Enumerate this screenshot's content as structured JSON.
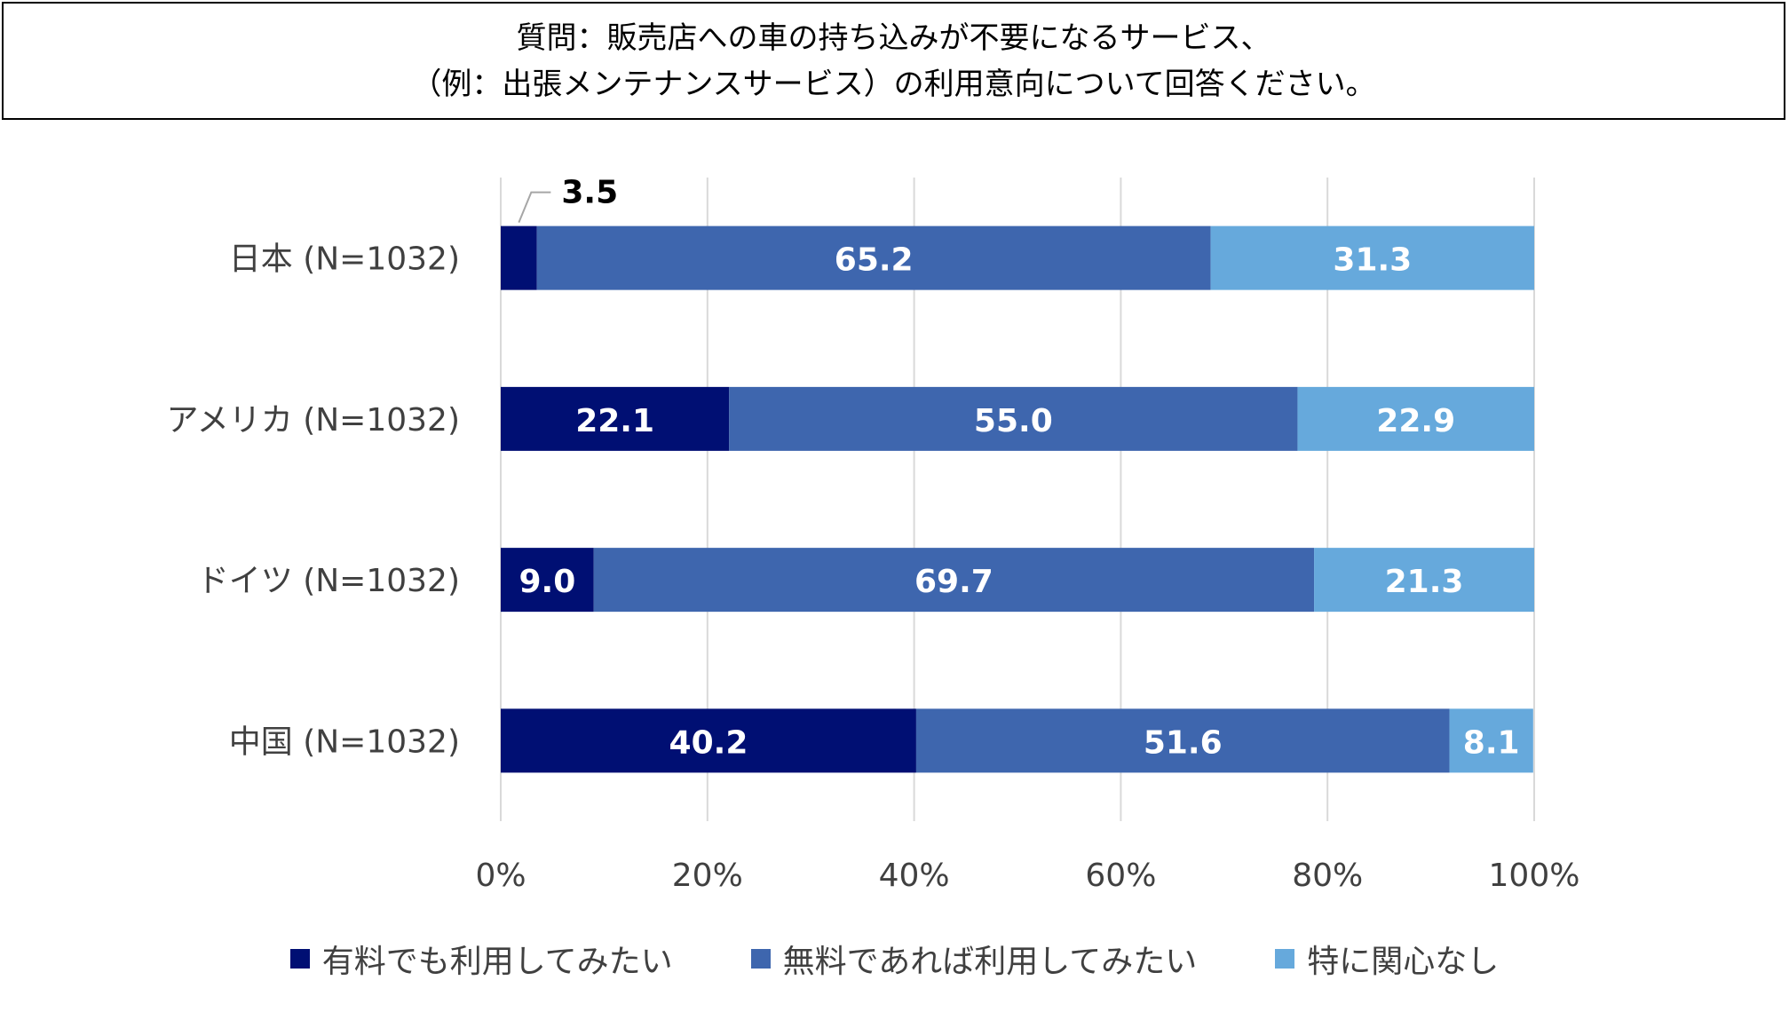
{
  "question": {
    "line1": "質問：販売店への車の持ち込みが不要になるサービス、",
    "line2": "（例：出張メンテナンスサービス）の利用意向について回答ください。"
  },
  "colors": {
    "paid": "#000F73",
    "free": "#3E66AE",
    "none": "#66A9DC",
    "grid": "#D9D9D9",
    "text": "#404040"
  },
  "chart_data": {
    "type": "bar",
    "orientation": "horizontal",
    "stacked": "100%",
    "categories": [
      "日本 (N=1032)",
      "アメリカ (N=1032)",
      "ドイツ (N=1032)",
      "中国 (N=1032)"
    ],
    "series": [
      {
        "name": "有料でも利用してみたい",
        "values": [
          3.5,
          22.1,
          9.0,
          40.2
        ],
        "labels": [
          "3.5",
          "22.1",
          "9.0",
          "40.2"
        ]
      },
      {
        "name": "無料であれば利用してみたい",
        "values": [
          65.2,
          55.0,
          69.7,
          51.6
        ],
        "labels": [
          "65.2",
          "55.0",
          "69.7",
          "51.6"
        ]
      },
      {
        "name": "特に関心なし",
        "values": [
          31.3,
          22.9,
          21.3,
          8.1
        ],
        "labels": [
          "31.3",
          "22.9",
          "21.3",
          "8.1"
        ]
      }
    ],
    "xlim": [
      0,
      100
    ],
    "xticks": [
      "0%",
      "20%",
      "40%",
      "60%",
      "80%",
      "100%"
    ],
    "grid": true,
    "legend_position": "bottom"
  }
}
